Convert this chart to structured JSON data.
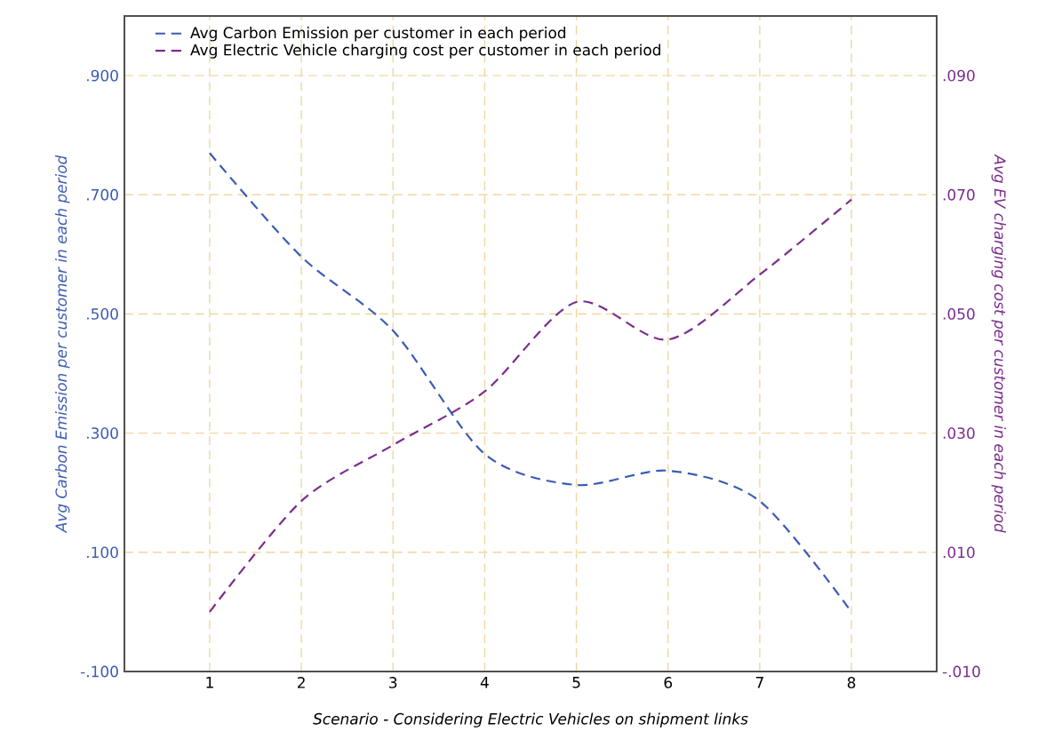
{
  "chart_data": {
    "type": "line",
    "xlabel": "Scenario - Considering Electric Vehicles on shipment links",
    "ylabel": "Avg Carbon Emission per customer in each period",
    "y2label": "Avg EV charging cost per customer in each period",
    "x": [
      1,
      2,
      3,
      4,
      5,
      6,
      7,
      8
    ],
    "series": [
      {
        "name": "Avg Carbon Emission per customer in each period",
        "color": "#3b5bb5",
        "values": [
          0.77,
          0.596,
          0.472,
          0.265,
          0.213,
          0.237,
          0.186,
          0.0
        ]
      },
      {
        "name": "Avg Electric Vehicle charging cost per customer in each period",
        "color": "#7b2d8e",
        "axis": "y2",
        "values": [
          0.0,
          0.0186,
          0.028,
          0.037,
          0.052,
          0.0457,
          0.0566,
          0.0692
        ]
      }
    ],
    "xlim": [
      0.07,
      8.93
    ],
    "xticks": [
      1,
      2,
      3,
      4,
      5,
      6,
      7,
      8
    ],
    "ylim": [
      -0.1,
      1.0
    ],
    "yticks": [
      {
        "value": -0.1,
        "label": "-.100"
      },
      {
        "value": 0.1,
        "label": ".100"
      },
      {
        "value": 0.3,
        "label": ".300"
      },
      {
        "value": 0.5,
        "label": ".500"
      },
      {
        "value": 0.7,
        "label": ".700"
      },
      {
        "value": 0.9,
        "label": ".900"
      }
    ],
    "y2lim": [
      -0.01,
      0.1
    ],
    "y2ticks": [
      {
        "value": -0.01,
        "label": "-.010"
      },
      {
        "value": 0.01,
        "label": ".010"
      },
      {
        "value": 0.03,
        "label": ".030"
      },
      {
        "value": 0.05,
        "label": ".050"
      },
      {
        "value": 0.07,
        "label": ".070"
      },
      {
        "value": 0.09,
        "label": ".090"
      }
    ],
    "grid": true,
    "legend": "top left",
    "line_style": "dashed"
  }
}
